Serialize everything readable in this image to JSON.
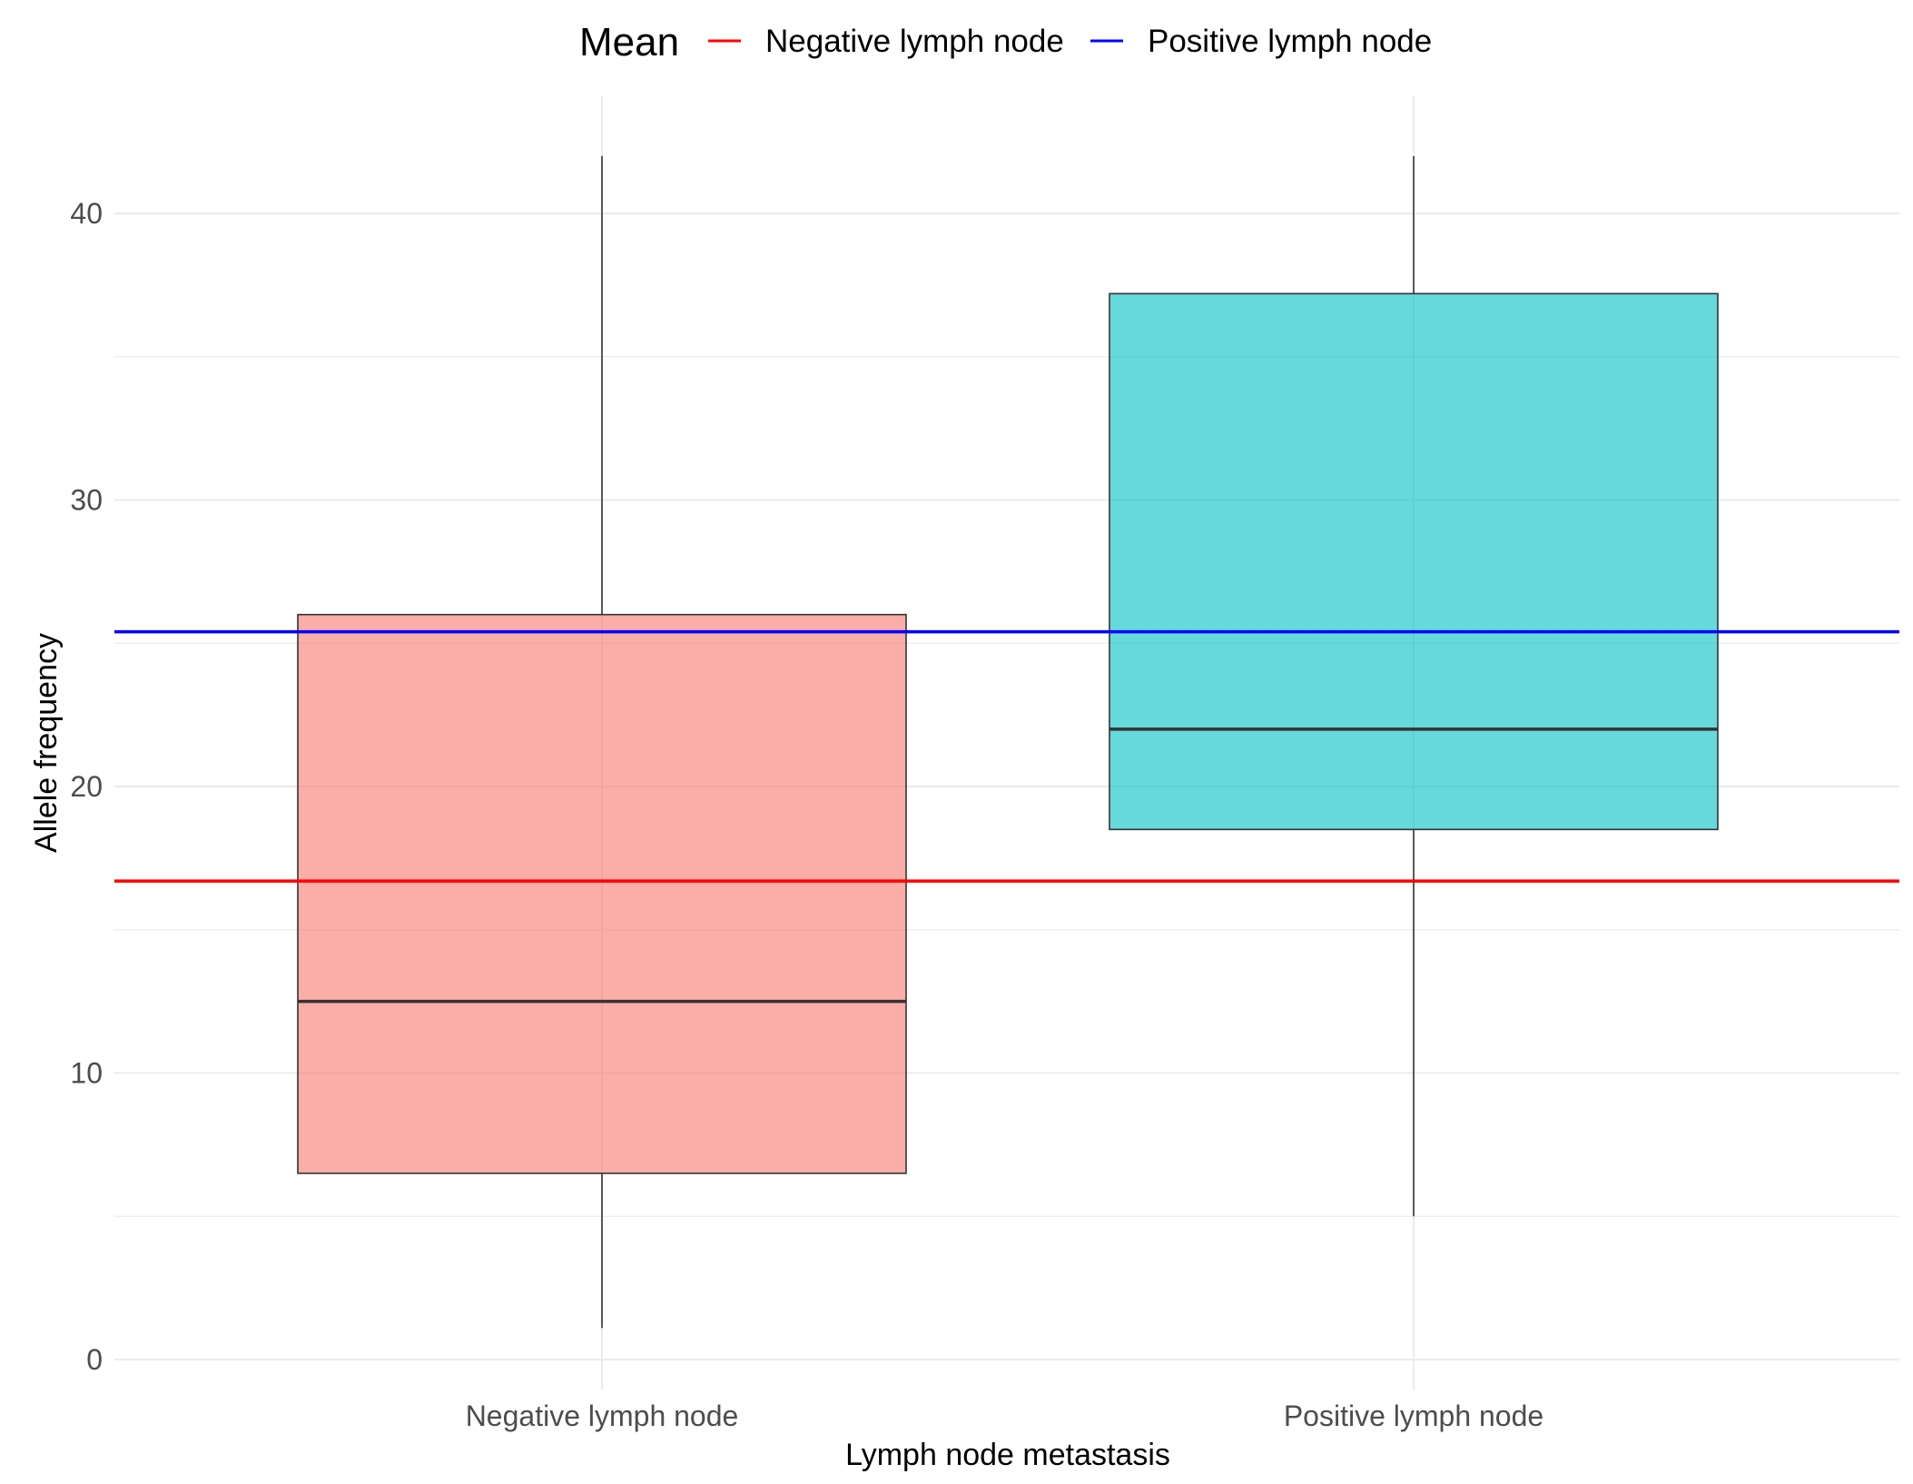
{
  "chart_data": {
    "type": "boxplot",
    "xlabel": "Lymph node metastasis",
    "ylabel": "Allele frequency",
    "ylim": [
      0,
      42
    ],
    "yticks": [
      0,
      10,
      20,
      30,
      40
    ],
    "grid": true,
    "legend": {
      "title": "Mean",
      "placement": "top",
      "entries": [
        {
          "name": "Negative lymph node",
          "color": "#ff0000"
        },
        {
          "name": "Positive lymph node",
          "color": "#0000ff"
        }
      ]
    },
    "categories": [
      "Negative lymph node",
      "Positive lymph node"
    ],
    "boxes": [
      {
        "category": "Negative lymph node",
        "min": 1.1,
        "q1": 6.5,
        "median": 12.5,
        "q3": 26.0,
        "max": 42.0,
        "fill": "#f8766d"
      },
      {
        "category": "Positive lymph node",
        "min": 5.0,
        "q1": 18.5,
        "median": 22.0,
        "q3": 37.2,
        "max": 42.0,
        "fill": "#00bfc4"
      }
    ],
    "mean_lines": [
      {
        "name": "Negative lymph node",
        "value": 16.7,
        "color": "#ff0000"
      },
      {
        "name": "Positive lymph node",
        "value": 25.4,
        "color": "#0000ff"
      }
    ]
  }
}
